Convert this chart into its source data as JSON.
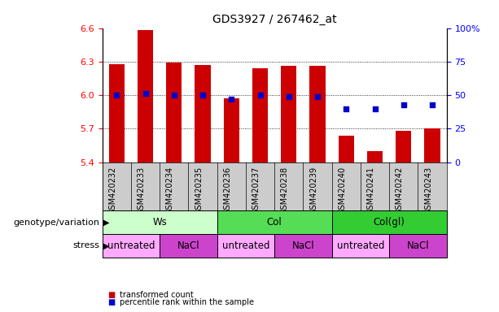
{
  "title": "GDS3927 / 267462_at",
  "samples": [
    "GSM420232",
    "GSM420233",
    "GSM420234",
    "GSM420235",
    "GSM420236",
    "GSM420237",
    "GSM420238",
    "GSM420239",
    "GSM420240",
    "GSM420241",
    "GSM420242",
    "GSM420243"
  ],
  "bar_values": [
    6.28,
    6.58,
    6.29,
    6.27,
    5.97,
    6.24,
    6.26,
    6.26,
    5.64,
    5.5,
    5.68,
    5.7
  ],
  "dot_values": [
    50,
    51,
    50,
    50,
    47,
    50,
    49,
    49,
    40,
    40,
    43,
    43
  ],
  "ylim_left": [
    5.4,
    6.6
  ],
  "ylim_right": [
    0,
    100
  ],
  "yticks_left": [
    5.4,
    5.7,
    6.0,
    6.3,
    6.6
  ],
  "yticks_right": [
    0,
    25,
    50,
    75,
    100
  ],
  "bar_color": "#CC0000",
  "dot_color": "#0000CC",
  "bar_bottom": 5.4,
  "groups": [
    {
      "label": "Ws",
      "start": 0,
      "end": 3,
      "color": "#ccffcc"
    },
    {
      "label": "Col",
      "start": 4,
      "end": 7,
      "color": "#55dd55"
    },
    {
      "label": "Col(gl)",
      "start": 8,
      "end": 11,
      "color": "#33cc33"
    }
  ],
  "stress_groups": [
    {
      "label": "untreated",
      "start": 0,
      "end": 1,
      "color": "#ffaaff"
    },
    {
      "label": "NaCl",
      "start": 2,
      "end": 3,
      "color": "#cc44cc"
    },
    {
      "label": "untreated",
      "start": 4,
      "end": 5,
      "color": "#ffaaff"
    },
    {
      "label": "NaCl",
      "start": 6,
      "end": 7,
      "color": "#cc44cc"
    },
    {
      "label": "untreated",
      "start": 8,
      "end": 9,
      "color": "#ffaaff"
    },
    {
      "label": "NaCl",
      "start": 10,
      "end": 11,
      "color": "#cc44cc"
    }
  ],
  "legend_bar_label": "transformed count",
  "legend_dot_label": "percentile rank within the sample",
  "genotype_label": "genotype/variation",
  "stress_label": "stress",
  "title_fontsize": 10,
  "tick_fontsize": 8,
  "label_fontsize": 8,
  "group_fontsize": 8.5,
  "xtick_fontsize": 7,
  "xtick_bg_color": "#cccccc"
}
